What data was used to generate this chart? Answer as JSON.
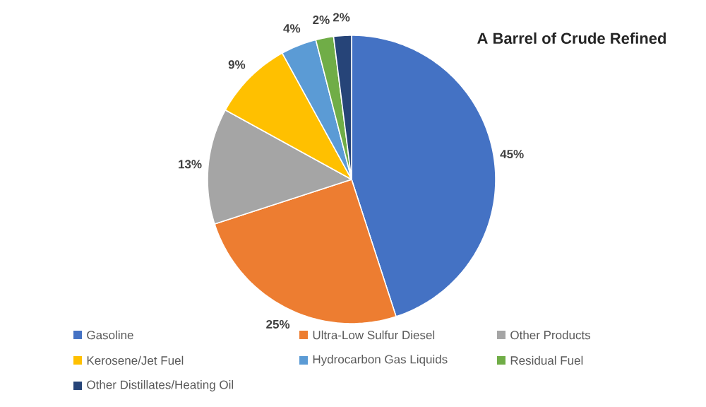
{
  "chart_data": {
    "type": "pie",
    "title": "A Barrel of Crude Refined",
    "categories": [
      "Gasoline",
      "Ultra-Low Sulfur Diesel",
      "Other Products",
      "Kerosene/Jet Fuel",
      "Hydrocarbon Gas Liquids",
      "Residual Fuel",
      "Other Distillates/Heating Oil"
    ],
    "values": [
      45,
      25,
      13,
      9,
      4,
      2,
      2
    ],
    "colors": [
      "#4472c4",
      "#ed7d31",
      "#a5a5a5",
      "#ffc000",
      "#5b9bd5",
      "#70ad47",
      "#264478"
    ],
    "value_labels": [
      "45%",
      "25%",
      "13%",
      "9%",
      "4%",
      "2%",
      "2%"
    ],
    "legend": "bottom"
  }
}
